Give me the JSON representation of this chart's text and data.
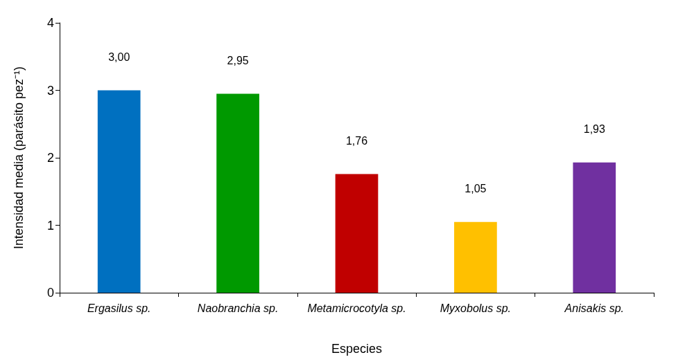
{
  "chart_data": {
    "type": "bar",
    "xlabel": "Especies",
    "ylabel": "Intensidad media (parásito pez⁻¹)",
    "categories": [
      "Ergasilus sp.",
      "Naobranchia sp.",
      "Metamicrocotyla sp.",
      "Myxobolus sp.",
      "Anisakis sp."
    ],
    "values": [
      3.0,
      2.95,
      1.76,
      1.05,
      1.93
    ],
    "colors": [
      "#0070c0",
      "#009900",
      "#c00000",
      "#ffc000",
      "#7030a0"
    ],
    "value_labels": [
      "3,00",
      "2,95",
      "1,76",
      "1,05",
      "1,93"
    ],
    "ylim": [
      0,
      4
    ],
    "yticks": [
      0,
      1,
      2,
      3,
      4
    ],
    "grid": false
  }
}
